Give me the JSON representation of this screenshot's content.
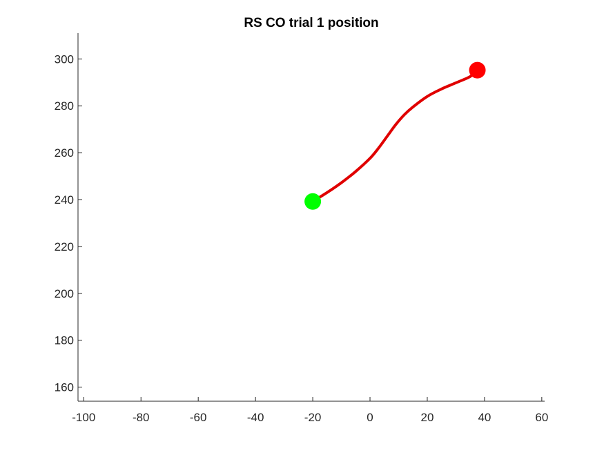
{
  "chart_data": {
    "type": "line",
    "title": "RS  CO trial 1 position",
    "xlabel": "",
    "ylabel": "",
    "xlim": [
      -102,
      61
    ],
    "ylim": [
      154,
      311
    ],
    "x_ticks": [
      -100,
      -80,
      -60,
      -40,
      -20,
      0,
      20,
      40,
      60
    ],
    "y_ticks": [
      160,
      180,
      200,
      220,
      240,
      260,
      280,
      300
    ],
    "x_tick_labels": [
      "-100",
      "-80",
      "-60",
      "-40",
      "-20",
      "0",
      "20",
      "40",
      "60"
    ],
    "y_tick_labels": [
      "160",
      "180",
      "200",
      "220",
      "240",
      "260",
      "280",
      "300"
    ],
    "grid": false,
    "series": [
      {
        "color": "#e00000",
        "x": [
          -20,
          -15,
          -10,
          -5,
          0,
          3,
          6,
          9,
          12,
          15,
          20,
          25,
          30,
          35,
          37.5
        ],
        "y": [
          239.2,
          243,
          247.2,
          252,
          257.6,
          262,
          267,
          272,
          276.2,
          279.5,
          284,
          287.2,
          289.8,
          292.5,
          295.2
        ]
      }
    ],
    "markers": [
      {
        "role": "start",
        "x": -20,
        "y": 239.2,
        "color": "#00ff00"
      },
      {
        "role": "end",
        "x": 37.5,
        "y": 295.2,
        "color": "#ff0000"
      }
    ]
  }
}
